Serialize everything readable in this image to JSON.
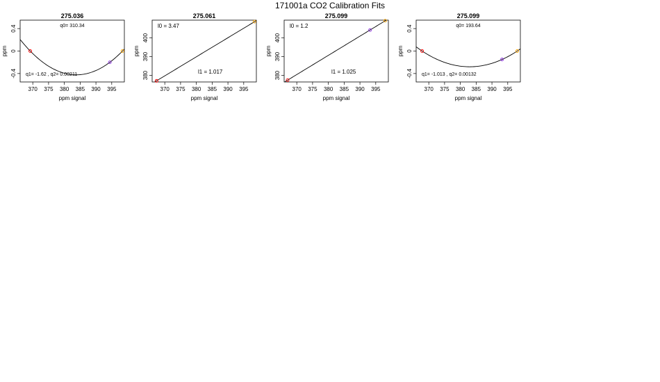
{
  "page_title": "171001a   CO2 Calibration Fits",
  "chart_data": [
    {
      "type": "line",
      "title": "275.036",
      "xlabel": "ppm signal",
      "ylabel": "ppm",
      "xlim": [
        366,
        399
      ],
      "ylim": [
        -0.55,
        0.55
      ],
      "x_ticks": [
        370,
        375,
        380,
        385,
        390,
        395
      ],
      "y_ticks": [
        -0.4,
        0.0,
        0.4
      ],
      "grid": false,
      "fit": "quadratic-residual",
      "coefficients": {
        "q0": 310.34,
        "q1": -1.62,
        "q2": 0.00211
      },
      "annotations": [
        "q0= 310.34",
        "q1= -1.62 , q2= 0.00211"
      ],
      "points": [
        {
          "x": 369.2,
          "y": 0.0,
          "color": "#ff0000"
        },
        {
          "x": 394.4,
          "y": -0.2,
          "color": "#8a2be2"
        },
        {
          "x": 398.4,
          "y": 0.0,
          "color": "#ffa500"
        }
      ]
    },
    {
      "type": "line",
      "title": "275.061",
      "xlabel": "ppm signal",
      "ylabel": "ppm",
      "xlim": [
        366,
        399
      ],
      "ylim": [
        376.5,
        409.5
      ],
      "x_ticks": [
        370,
        375,
        380,
        385,
        390,
        395
      ],
      "y_ticks": [
        380,
        390,
        400
      ],
      "grid": false,
      "fit": "linear",
      "coefficients": {
        "l0": 3.47,
        "l1": 1.017
      },
      "annotations": [
        "l0 =  3.47",
        "l1 =  1.017"
      ],
      "points": [
        {
          "x": 367.4,
          "y": 377.1,
          "color": "#ff0000"
        },
        {
          "x": 398.4,
          "y": 408.7,
          "color": "#ffa500"
        }
      ]
    },
    {
      "type": "line",
      "title": "275.099",
      "xlabel": "ppm signal",
      "ylabel": "ppm",
      "xlim": [
        366,
        399
      ],
      "ylim": [
        376.5,
        409.5
      ],
      "x_ticks": [
        370,
        375,
        380,
        385,
        390,
        395
      ],
      "y_ticks": [
        380,
        390,
        400
      ],
      "grid": false,
      "fit": "linear",
      "coefficients": {
        "l0": 1.2,
        "l1": 1.025
      },
      "annotations": [
        "l0 =  1.2",
        "l1 =  1.025"
      ],
      "points": [
        {
          "x": 367.1,
          "y": 377.5,
          "color": "#ff0000"
        },
        {
          "x": 393.2,
          "y": 404.2,
          "color": "#8a2be2"
        },
        {
          "x": 398.0,
          "y": 409.2,
          "color": "#ffa500"
        }
      ]
    },
    {
      "type": "line",
      "title": "275.099",
      "xlabel": "ppm signal",
      "ylabel": "ppm",
      "xlim": [
        366,
        399
      ],
      "ylim": [
        -0.55,
        0.55
      ],
      "x_ticks": [
        370,
        375,
        380,
        385,
        390,
        395
      ],
      "y_ticks": [
        -0.4,
        0.0,
        0.4
      ],
      "grid": false,
      "fit": "quadratic-residual",
      "coefficients": {
        "q0": 193.64,
        "q1": -1.013,
        "q2": 0.00132
      },
      "annotations": [
        "q0= 193.64",
        "q1= -1.013 , q2= 0.00132"
      ],
      "points": [
        {
          "x": 367.9,
          "y": 0.0,
          "color": "#ff0000"
        },
        {
          "x": 393.2,
          "y": -0.15,
          "color": "#8a2be2"
        },
        {
          "x": 398.0,
          "y": 0.0,
          "color": "#ffa500"
        }
      ]
    }
  ]
}
